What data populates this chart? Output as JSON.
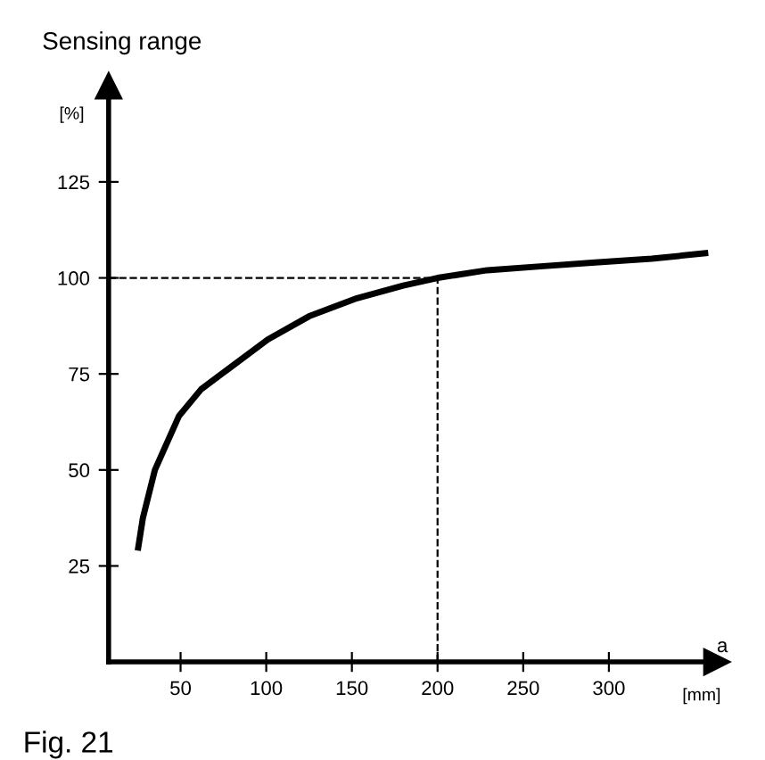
{
  "chart_data": {
    "type": "line",
    "title": "Sensing range",
    "ylabel": "[%]",
    "xlabel": "a",
    "annotations": [
      "[mm]",
      "Fig. 21"
    ],
    "xlim": [
      8,
      363
    ],
    "ylim": [
      0,
      150
    ],
    "xticks": [
      50,
      100,
      150,
      200,
      250,
      300
    ],
    "yticks": [
      25,
      50,
      75,
      100,
      125
    ],
    "grid": false,
    "legend": false,
    "marker": "none",
    "line_style": "solid",
    "ref_lines": [
      {
        "axis": "y",
        "value": 100,
        "line_style": "dashed",
        "color": "#000000"
      },
      {
        "axis": "x",
        "value": 200,
        "line_style": "dashed",
        "color": "#000000"
      }
    ],
    "series": [
      {
        "color": "#000000",
        "x": [
          25,
          28,
          35,
          49,
          62,
          77,
          101,
          125,
          153,
          180,
          200,
          229,
          260,
          292,
          325,
          358
        ],
        "values": [
          29,
          37.5,
          50,
          64,
          71,
          76,
          84,
          90,
          94.7,
          98,
          100,
          102,
          103,
          104,
          105,
          106.5
        ]
      }
    ]
  }
}
